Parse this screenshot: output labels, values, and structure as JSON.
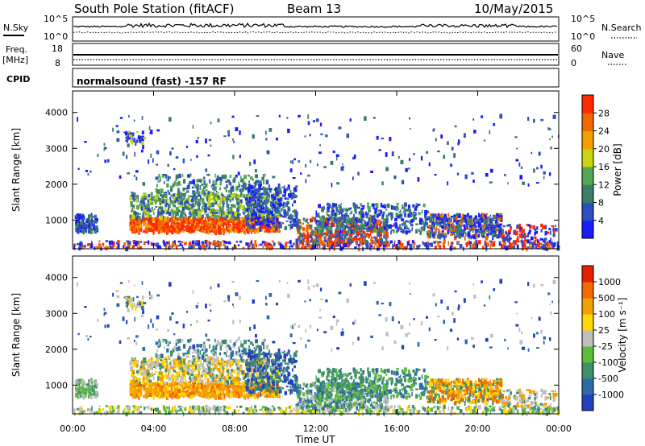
{
  "header": {
    "title": "South Pole Station (fitACF)",
    "beam": "Beam 13",
    "date": "10/May/2015"
  },
  "chart_data": [
    {
      "type": "line",
      "panel": "noise",
      "left_label": "N.Sky",
      "right_label": "N.Search",
      "left_ticks": [
        "10^5",
        "10^0"
      ],
      "right_ticks": [
        "10^5",
        "10^0"
      ],
      "scale": "log"
    },
    {
      "type": "line",
      "panel": "frequency",
      "left_label_1": "Freq.",
      "left_label_2": "[MHz]",
      "right_label": "Nave",
      "left_ticks": [
        18,
        8
      ],
      "right_ticks": [
        60,
        0
      ]
    },
    {
      "type": "text",
      "panel": "cpid",
      "label": "CPID",
      "text": "normalsound (fast) -157 RF"
    },
    {
      "type": "heatmap",
      "panel": "power",
      "ylabel": "Slant Range [km]",
      "yticks": [
        1000,
        2000,
        3000,
        4000
      ],
      "colorbar_label": "Power [dB]",
      "colorbar_ticks": [
        4,
        8,
        12,
        16,
        20,
        24,
        28
      ],
      "colorbar_colors": [
        "#1a1aff",
        "#2d4fbf",
        "#3c7d6e",
        "#53a653",
        "#c8d60f",
        "#f4a000",
        "#f06a00",
        "#ff2a00"
      ]
    },
    {
      "type": "heatmap",
      "panel": "velocity",
      "ylabel": "Slant Range [km]",
      "yticks": [
        1000,
        2000,
        3000,
        4000
      ],
      "xticks": [
        "00:00",
        "04:00",
        "08:00",
        "12:00",
        "16:00",
        "20:00",
        "00:00"
      ],
      "xlabel": "Time UT",
      "colorbar_label": "Velocity [m s⁻¹]",
      "colorbar_ticks": [
        1000,
        500,
        100,
        25,
        -25,
        -100,
        -500,
        -1000
      ],
      "colorbar_colors": [
        "#2340c0",
        "#2e6aa8",
        "#3f8f6e",
        "#5dbd3a",
        "#bfbfbf",
        "#ffd900",
        "#f4a000",
        "#f26a00",
        "#e32000"
      ]
    }
  ]
}
